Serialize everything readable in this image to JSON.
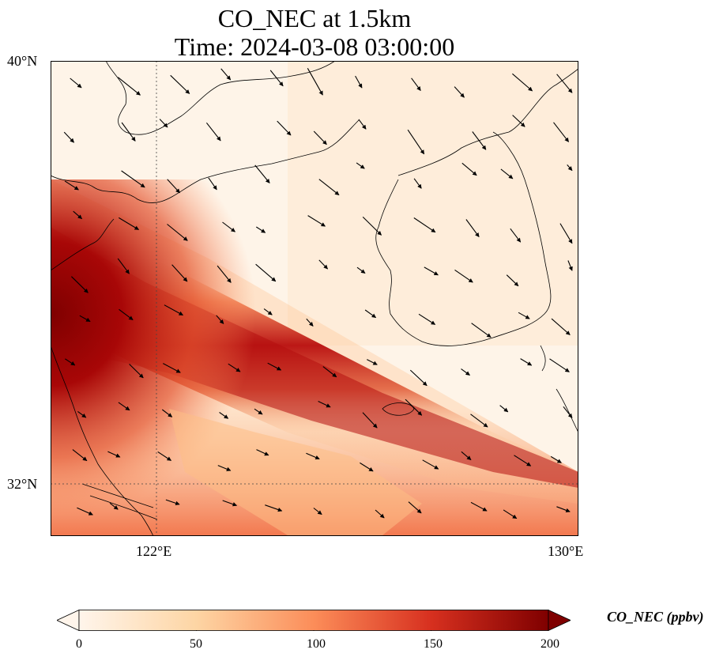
{
  "title": {
    "line1": "CO_NEC at 1.5km",
    "line2": "Time: 2024-03-08 03:00:00"
  },
  "axes": {
    "y_ticks": [
      "40°N",
      "32°N"
    ],
    "x_ticks": [
      "122°E",
      "130°E"
    ]
  },
  "colorbar": {
    "label": "CO_NEC (ppbv)",
    "ticks": [
      "0",
      "50",
      "100",
      "150",
      "200"
    ],
    "range": [
      0,
      200
    ],
    "extend": "both",
    "colormap": [
      "#fff5eb",
      "#fdd5a4",
      "#fc8d59",
      "#d7301f",
      "#7f0000"
    ]
  },
  "map": {
    "extent": {
      "lon": [
        120,
        130
      ],
      "lat": [
        31,
        40
      ]
    },
    "gridlines": {
      "lon": [
        122
      ],
      "lat": [
        32
      ],
      "style": "dotted"
    },
    "features": [
      "coastline",
      "wind-vectors",
      "CO concentration field"
    ]
  }
}
